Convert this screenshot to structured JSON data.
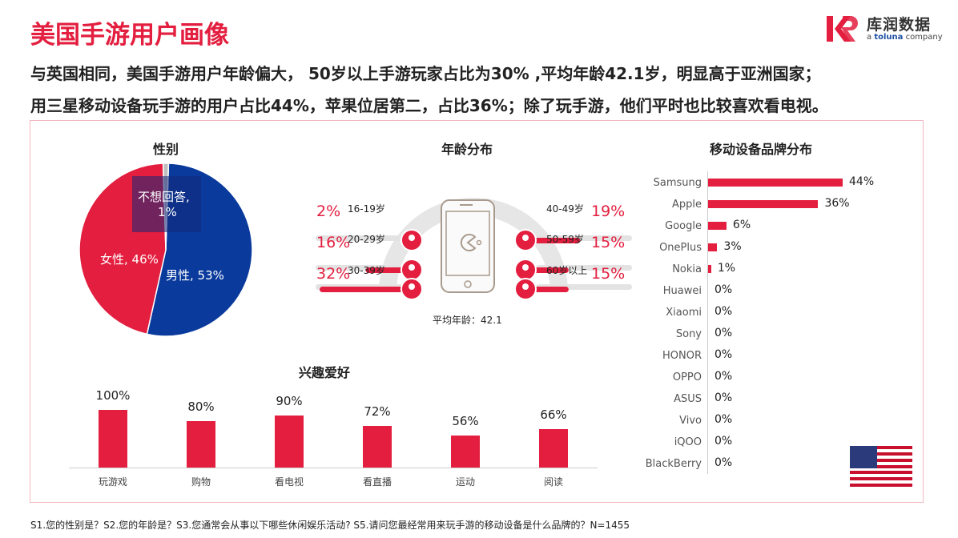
{
  "title": "美国手游用户画像",
  "logo": {
    "cn": "库润数据",
    "en_prefix": "a ",
    "en_brand": "toluna",
    "en_suffix": " company"
  },
  "subtitle1": "与英国相同，美国手游用户年龄偏大， 50岁以上手游玩家占比为30% ,平均年龄42.1岁，明显高于亚洲国家；",
  "subtitle2": "用三星移动设备玩手游的用户占比44%，苹果位居第二，占比36%；除了玩手游，他们平时也比较喜欢看电视。",
  "gender": {
    "title": "性别",
    "slices": [
      {
        "label": "男性, 53%",
        "value": 53,
        "color": "#0a3a9c"
      },
      {
        "label": "女性, 46%",
        "value": 46,
        "color": "#e31e3f"
      },
      {
        "label1": "不想回答,",
        "label2": "1%",
        "value": 1,
        "color": "#bfbfbf"
      }
    ]
  },
  "age": {
    "title": "年龄分布",
    "avg": "平均年龄：42.1",
    "left": [
      {
        "pct": "2%",
        "label": "16-19岁",
        "value": 2
      },
      {
        "pct": "16%",
        "label": "20-29岁",
        "value": 16
      },
      {
        "pct": "32%",
        "label": "30-39岁",
        "value": 32
      }
    ],
    "right": [
      {
        "pct": "19%",
        "label": "40-49岁",
        "value": 19
      },
      {
        "pct": "15%",
        "label": "50-59岁",
        "value": 15
      },
      {
        "pct": "15%",
        "label": "60岁以上",
        "value": 15
      }
    ]
  },
  "brands": {
    "title": "移动设备品牌分布",
    "items": [
      {
        "name": "Samsung",
        "pct": "44%",
        "value": 44
      },
      {
        "name": "Apple",
        "pct": "36%",
        "value": 36
      },
      {
        "name": "Google",
        "pct": "6%",
        "value": 6
      },
      {
        "name": "OnePlus",
        "pct": "3%",
        "value": 3
      },
      {
        "name": "Nokia",
        "pct": "1%",
        "value": 1
      },
      {
        "name": "Huawei",
        "pct": "0%",
        "value": 0
      },
      {
        "name": "Xiaomi",
        "pct": "0%",
        "value": 0
      },
      {
        "name": "Sony",
        "pct": "0%",
        "value": 0
      },
      {
        "name": "HONOR",
        "pct": "0%",
        "value": 0
      },
      {
        "name": "OPPO",
        "pct": "0%",
        "value": 0
      },
      {
        "name": "ASUS",
        "pct": "0%",
        "value": 0
      },
      {
        "name": "Vivo",
        "pct": "0%",
        "value": 0
      },
      {
        "name": "iQOO",
        "pct": "0%",
        "value": 0
      },
      {
        "name": "BlackBerry",
        "pct": "0%",
        "value": 0
      }
    ]
  },
  "hobbies": {
    "title": "兴趣爱好",
    "items": [
      {
        "name": "玩游戏",
        "pct": "100%",
        "value": 100
      },
      {
        "name": "购物",
        "pct": "80%",
        "value": 80
      },
      {
        "name": "看电视",
        "pct": "90%",
        "value": 90
      },
      {
        "name": "看直播",
        "pct": "72%",
        "value": 72
      },
      {
        "name": "运动",
        "pct": "56%",
        "value": 56
      },
      {
        "name": "阅读",
        "pct": "66%",
        "value": 66
      }
    ]
  },
  "colors": {
    "accent": "#e31e3f",
    "blue": "#0a3a9c"
  },
  "footer": "S1.您的性别是？S2.您的年龄是？S3.您通常会从事以下哪些休闲娱乐活动? S5.请问您最经常用来玩手游的移动设备是什么品牌的？N=1455"
}
